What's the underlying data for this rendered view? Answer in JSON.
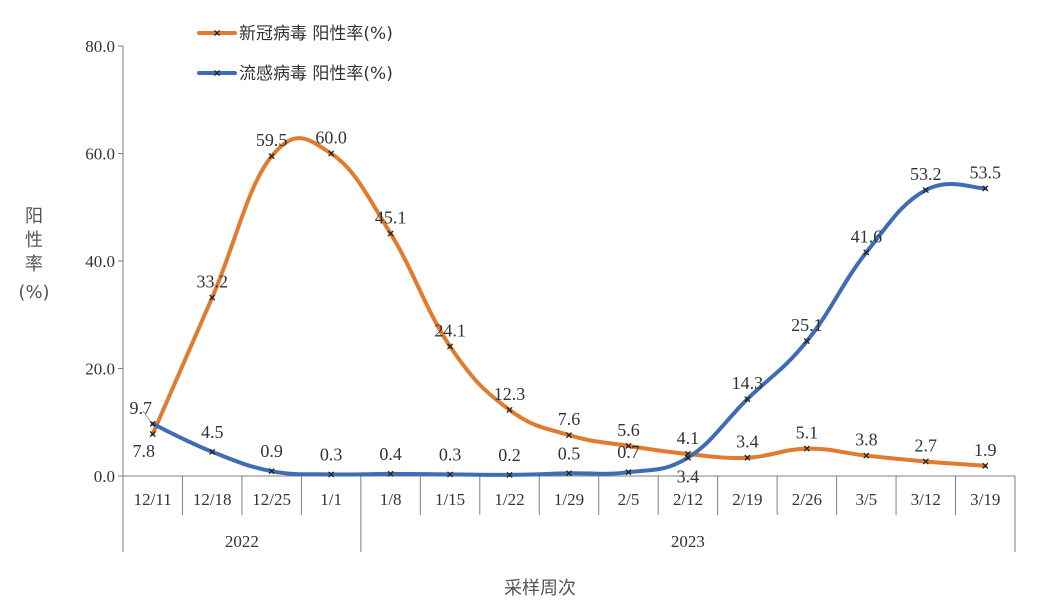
{
  "chart_data": {
    "type": "line",
    "x": [
      "12/11",
      "12/18",
      "12/25",
      "1/1",
      "1/8",
      "1/15",
      "1/22",
      "1/29",
      "2/5",
      "2/12",
      "2/19",
      "2/26",
      "3/5",
      "3/12",
      "3/19"
    ],
    "groups": [
      {
        "label": "2022",
        "span": 4
      },
      {
        "label": "2023",
        "span": 11
      }
    ],
    "series": [
      {
        "name": "新冠病毒 阳性率(%)",
        "color": "#E07B2F",
        "values": [
          7.8,
          33.2,
          59.5,
          60.0,
          45.1,
          24.1,
          12.3,
          7.6,
          5.6,
          4.1,
          3.4,
          5.1,
          3.8,
          2.7,
          1.9
        ],
        "labels": [
          "7.8",
          "33.2",
          "59.5",
          "60.0",
          "45.1",
          "24.1",
          "12.3",
          "7.6",
          "5.6",
          "4.1",
          "3.4",
          "5.1",
          "3.8",
          "2.7",
          "1.9"
        ]
      },
      {
        "name": "流感病毒 阳性率(%)",
        "color": "#3F6DB5",
        "values": [
          9.7,
          4.5,
          0.9,
          0.3,
          0.4,
          0.3,
          0.2,
          0.5,
          0.7,
          3.4,
          14.3,
          25.1,
          41.6,
          53.2,
          53.5
        ],
        "labels": [
          "9.7",
          "4.5",
          "0.9",
          "0.3",
          "0.4",
          "0.3",
          "0.2",
          "0.5",
          "0.7",
          "3.4",
          "14.3",
          "25.1",
          "41.6",
          "53.2",
          "53.5"
        ]
      }
    ],
    "yticks": [
      "0.0",
      "20.0",
      "40.0",
      "60.0",
      "80.0"
    ],
    "ylim": [
      0,
      80
    ],
    "ylabel": [
      "阳",
      "性",
      "率",
      "(%)"
    ],
    "xlabel": "采样周次",
    "legend_position": "top-left",
    "grid": false
  }
}
